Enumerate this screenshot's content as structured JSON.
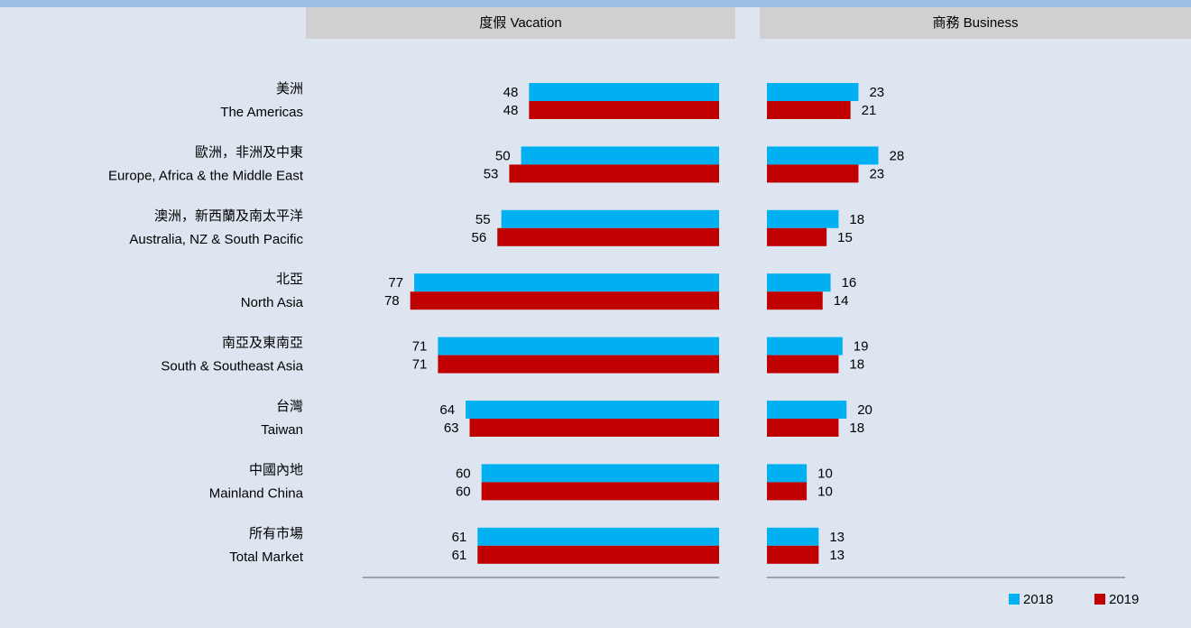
{
  "chart_data": [
    {
      "type": "bar",
      "orientation": "horizontal",
      "direction": "left",
      "title": "度假 Vacation",
      "categories": [
        "美洲",
        "歐洲，非洲及中東",
        "澳洲，新西蘭及南太平洋",
        "北亞",
        "南亞及東南亞",
        "台灣",
        "中國內地",
        "所有市場"
      ],
      "categories_en": [
        "The Americas",
        "Europe, Africa & the Middle East",
        "Australia, NZ & South Pacific",
        "North Asia",
        "South & Southeast Asia",
        "Taiwan",
        "Mainland China",
        "Total Market"
      ],
      "xlim": [
        0,
        90
      ],
      "series": [
        {
          "name": "2018",
          "color": "#00b0f0",
          "values": [
            48,
            50,
            55,
            77,
            71,
            64,
            60,
            61
          ]
        },
        {
          "name": "2019",
          "color": "#c00000",
          "values": [
            48,
            53,
            56,
            78,
            71,
            63,
            60,
            61
          ]
        }
      ]
    },
    {
      "type": "bar",
      "orientation": "horizontal",
      "direction": "right",
      "title": "商務 Business",
      "xlim": [
        0,
        90
      ],
      "series": [
        {
          "color": "#00b0f0",
          "values": [
            23,
            28,
            18,
            16,
            19,
            20,
            10,
            13
          ]
        },
        {
          "color": "#c00000",
          "values": [
            21,
            23,
            15,
            14,
            18,
            18,
            10,
            13
          ]
        }
      ]
    }
  ]
}
